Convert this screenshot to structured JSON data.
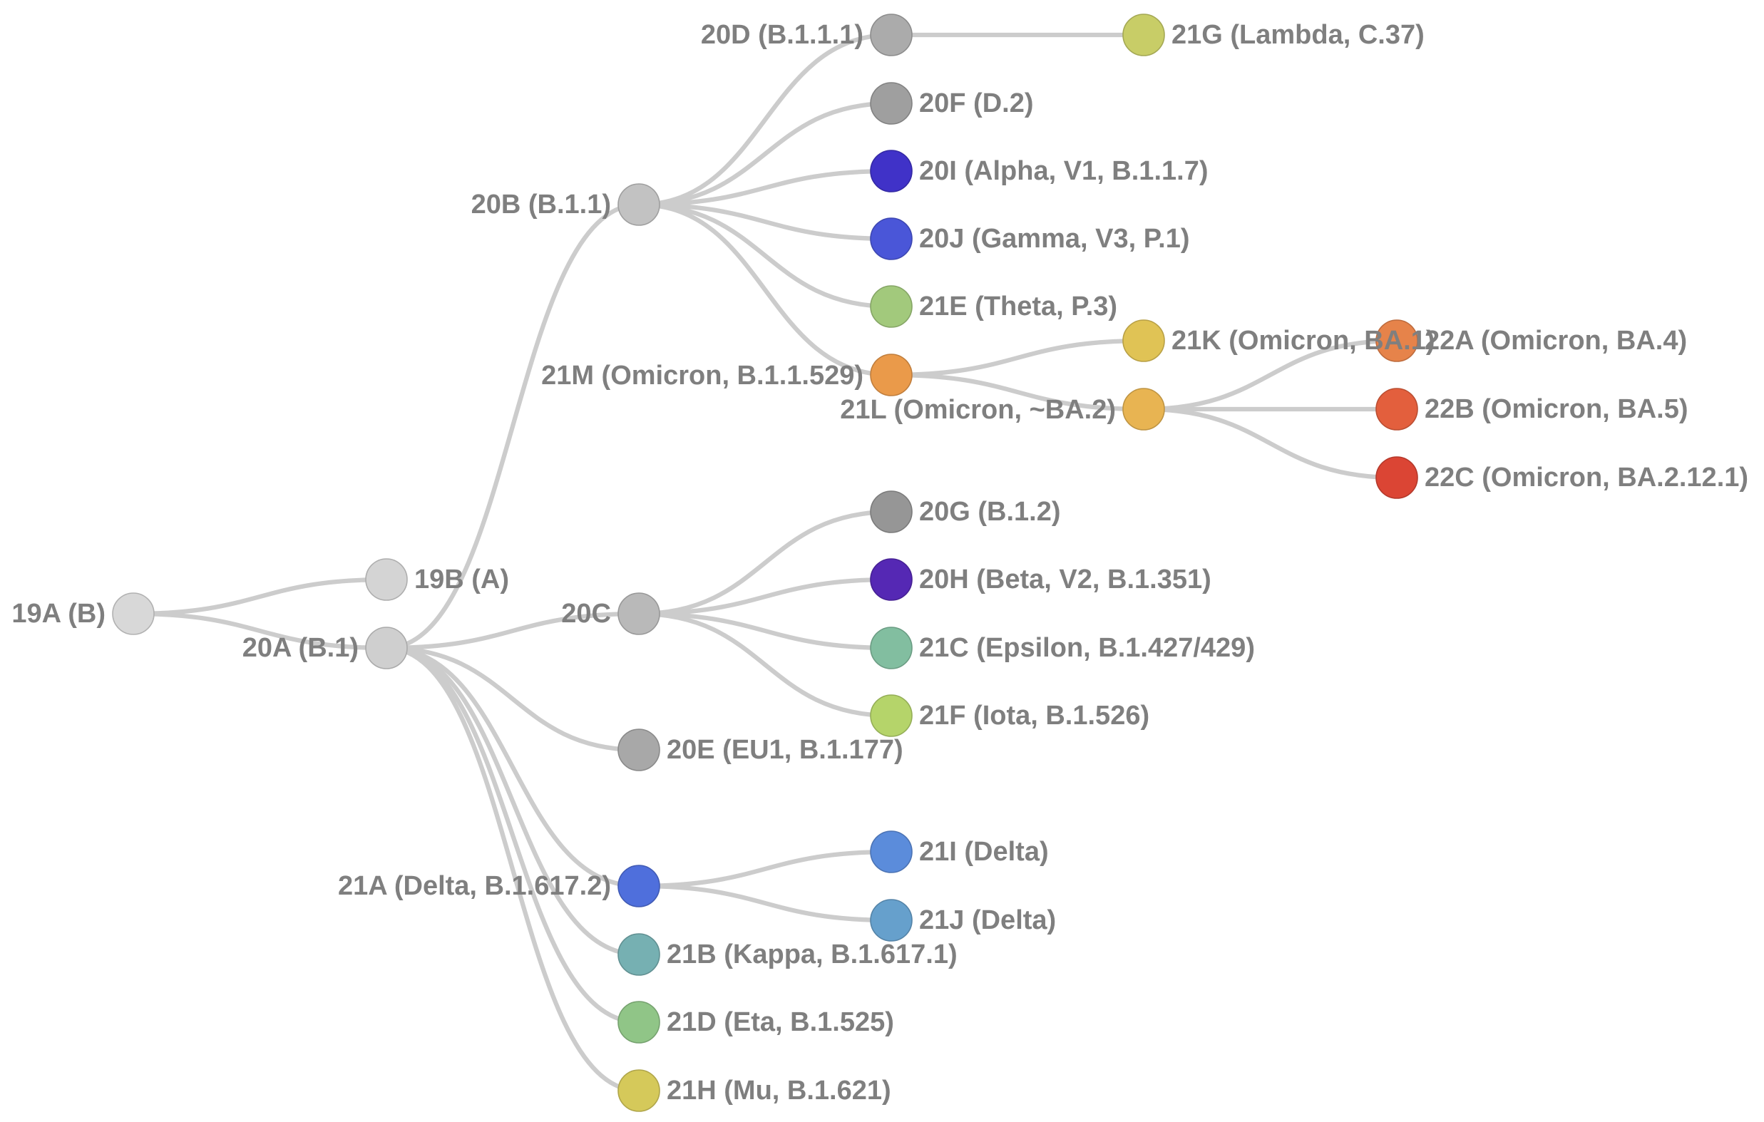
{
  "diagram": {
    "nodes": [
      {
        "id": "19A",
        "label": "19A (B)",
        "parent": null,
        "color": "#d8d8d8"
      },
      {
        "id": "19B",
        "label": "19B (A)",
        "parent": "19A",
        "color": "#d4d4d4"
      },
      {
        "id": "20A",
        "label": "20A (B.1)",
        "parent": "19A",
        "color": "#cfcfcf"
      },
      {
        "id": "20B",
        "label": "20B (B.1.1)",
        "parent": "20A",
        "color": "#c2c2c2"
      },
      {
        "id": "20C",
        "label": "20C",
        "parent": "20A",
        "color": "#b9b9b9"
      },
      {
        "id": "20E",
        "label": "20E (EU1, B.1.177)",
        "parent": "20A",
        "color": "#a8a8a8"
      },
      {
        "id": "21A",
        "label": "21A (Delta, B.1.617.2)",
        "parent": "20A",
        "color": "#4f6fdc"
      },
      {
        "id": "21B",
        "label": "21B (Kappa, B.1.617.1)",
        "parent": "20A",
        "color": "#76b0b2"
      },
      {
        "id": "21D",
        "label": "21D (Eta, B.1.525)",
        "parent": "20A",
        "color": "#90c587"
      },
      {
        "id": "21H",
        "label": "21H (Mu, B.1.621)",
        "parent": "20A",
        "color": "#d5c95a"
      },
      {
        "id": "20D",
        "label": "20D (B.1.1.1)",
        "parent": "20B",
        "color": "#ababab"
      },
      {
        "id": "20F",
        "label": "20F (D.2)",
        "parent": "20B",
        "color": "#9f9f9f"
      },
      {
        "id": "20I",
        "label": "20I (Alpha, V1, B.1.1.7)",
        "parent": "20B",
        "color": "#4032c8"
      },
      {
        "id": "20J",
        "label": "20J (Gamma, V3, P.1)",
        "parent": "20B",
        "color": "#4a56d8"
      },
      {
        "id": "21E",
        "label": "21E (Theta, P.3)",
        "parent": "20B",
        "color": "#a2c97c"
      },
      {
        "id": "21M",
        "label": "21M (Omicron, B.1.1.529)",
        "parent": "20B",
        "color": "#ea9a4a"
      },
      {
        "id": "21G",
        "label": "21G (Lambda, C.37)",
        "parent": "20D",
        "color": "#c8cd67"
      },
      {
        "id": "21K",
        "label": "21K (Omicron, BA.1)",
        "parent": "21M",
        "color": "#e0c355"
      },
      {
        "id": "21L",
        "label": "21L (Omicron, ~BA.2)",
        "parent": "21M",
        "color": "#e8b452"
      },
      {
        "id": "22A",
        "label": "22A (Omicron, BA.4)",
        "parent": "21L",
        "color": "#e6834a"
      },
      {
        "id": "22B",
        "label": "22B (Omicron, BA.5)",
        "parent": "21L",
        "color": "#e35f3d"
      },
      {
        "id": "22C",
        "label": "22C (Omicron, BA.2.12.1)",
        "parent": "21L",
        "color": "#db4534"
      },
      {
        "id": "20G",
        "label": "20G (B.1.2)",
        "parent": "20C",
        "color": "#969696"
      },
      {
        "id": "20H",
        "label": "20H (Beta, V2, B.1.351)",
        "parent": "20C",
        "color": "#5528b4"
      },
      {
        "id": "21C",
        "label": "21C (Epsilon, B.1.427/429)",
        "parent": "20C",
        "color": "#82bea0"
      },
      {
        "id": "21F",
        "label": "21F (Iota, B.1.526)",
        "parent": "20C",
        "color": "#b5d46a"
      },
      {
        "id": "21I",
        "label": "21I (Delta)",
        "parent": "21A",
        "color": "#5b8cdb"
      },
      {
        "id": "21J",
        "label": "21J (Delta)",
        "parent": "21A",
        "color": "#66a0cc"
      }
    ]
  }
}
